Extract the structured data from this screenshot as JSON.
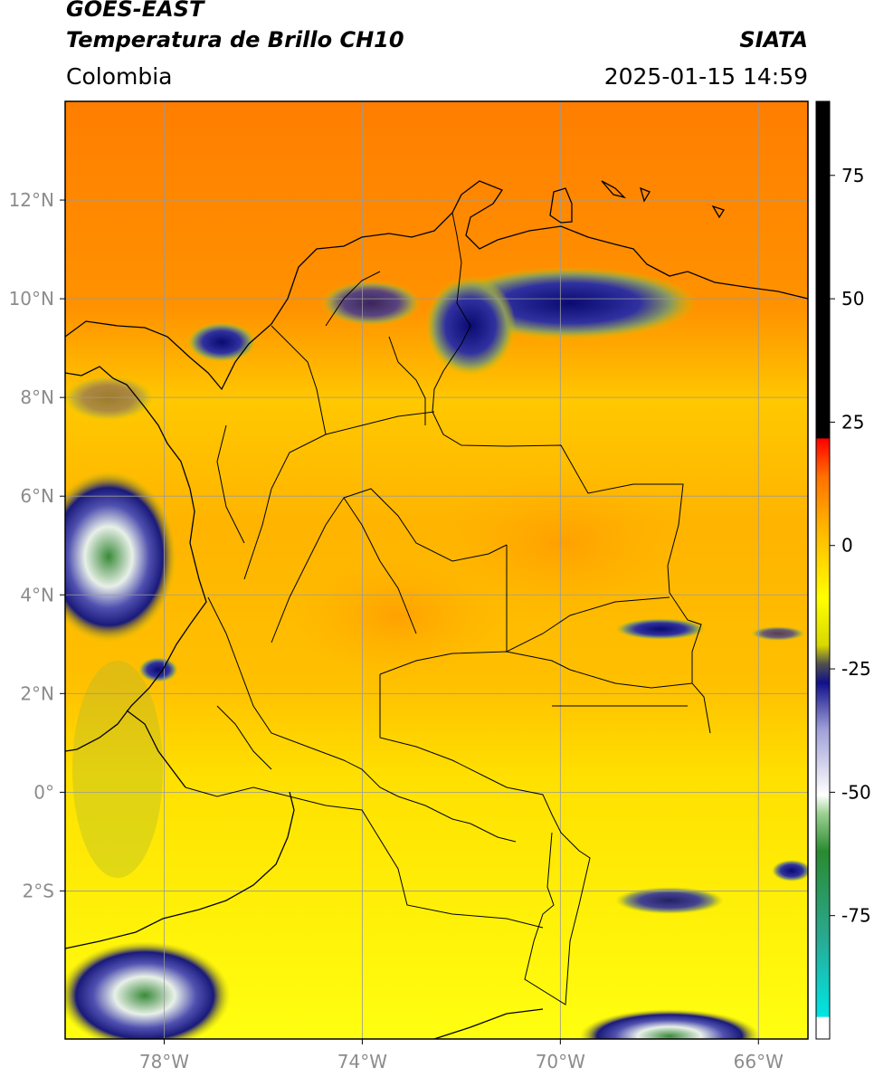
{
  "header": {
    "satellite": "GOES-EAST",
    "product": "Temperatura de Brillo CH10",
    "region": "Colombia",
    "agency": "SIATA",
    "datetime": "2025-01-15 14:59"
  },
  "map": {
    "lon_range": [
      -80,
      -65
    ],
    "lat_range": [
      -5,
      14
    ],
    "lat_ticks": [
      {
        "value": 12,
        "label": "12°N"
      },
      {
        "value": 10,
        "label": "10°N"
      },
      {
        "value": 8,
        "label": "8°N"
      },
      {
        "value": 6,
        "label": "6°N"
      },
      {
        "value": 4,
        "label": "4°N"
      },
      {
        "value": 2,
        "label": "2°N"
      },
      {
        "value": 0,
        "label": "0°"
      },
      {
        "value": -2,
        "label": "2°S"
      }
    ],
    "lon_ticks": [
      {
        "value": -78,
        "label": "78°W"
      },
      {
        "value": -74,
        "label": "74°W"
      },
      {
        "value": -70,
        "label": "70°W"
      },
      {
        "value": -66,
        "label": "66°W"
      }
    ],
    "grid": true
  },
  "colorbar": {
    "range": [
      -100,
      90
    ],
    "ticks": [
      {
        "value": 75,
        "label": "75"
      },
      {
        "value": 50,
        "label": "50"
      },
      {
        "value": 25,
        "label": "25"
      },
      {
        "value": 0,
        "label": "0"
      },
      {
        "value": -25,
        "label": "-25"
      },
      {
        "value": -50,
        "label": "-50"
      },
      {
        "value": -75,
        "label": "-75"
      }
    ]
  },
  "colors": {
    "warm_orange": "#ff8c00",
    "yellow": "#ffff00",
    "cold_blue": "#1a1a8c",
    "coast": "#000000",
    "grid": "#9a9a9a"
  }
}
